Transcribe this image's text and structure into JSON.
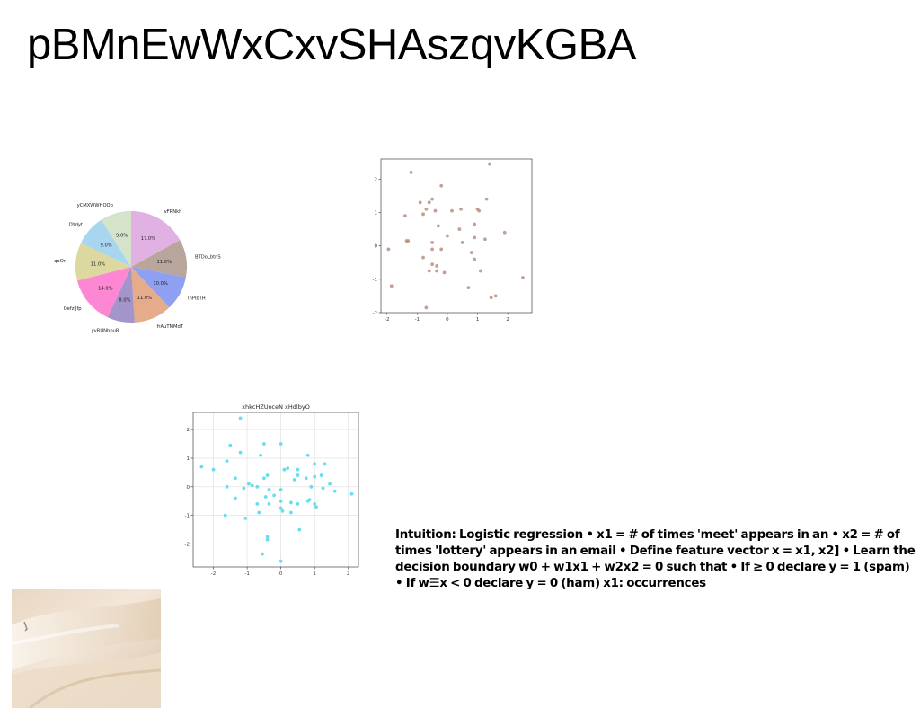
{
  "page": {
    "title": "pBMnEwWxCxvSHAszqvKGBA",
    "body_text": "Intuition: Logistic regression • x1 = # of times 'meet' appears in an • x2 = # of times 'lottery' appears in an email • Define feature vector x = x1, x2] • Learn the decision boundary w0 + w1x1 + w2x2 = 0 such that • If ≥ 0 declare y = 1 (spam) • If w☰x < 0 declare y = 0 (ham) x1: occurrences"
  },
  "chart_data": [
    {
      "type": "pie",
      "title": "",
      "slices": [
        {
          "label": "vFRNkh",
          "value": 17.0,
          "pct_label": "17.0%",
          "color": "#e2b1e3"
        },
        {
          "label": "BTDoLbtnS",
          "value": 11.0,
          "pct_label": "11.0%",
          "color": "#b8a69c"
        },
        {
          "label": "lhPlbTH",
          "value": 10.0,
          "pct_label": "10.0%",
          "color": "#8f9ff2"
        },
        {
          "label": "frAuTMMdT",
          "value": 11.0,
          "pct_label": "11.0%",
          "color": "#e5ab8a"
        },
        {
          "label": "yvRUNbpuR",
          "value": 8.0,
          "pct_label": "8.0%",
          "color": "#a395c9"
        },
        {
          "label": "OefzIJfp",
          "value": 14.0,
          "pct_label": "14.0%",
          "color": "#fd87d3"
        },
        {
          "label": "qoOrj",
          "value": 11.0,
          "pct_label": "11.0%",
          "color": "#ddd89f"
        },
        {
          "label": "DYdyt",
          "value": 9.0,
          "pct_label": "9.0%",
          "color": "#a9d6ef"
        },
        {
          "label": "yCMXWWHOOb",
          "value": 9.0,
          "pct_label": "9.0%",
          "color": "#d4e3c9"
        }
      ]
    },
    {
      "type": "scatter",
      "title": "",
      "color": "#b98f80",
      "xlim": [
        -2.2,
        2.8
      ],
      "ylim": [
        -2.0,
        2.6
      ],
      "xticks": [
        "-2",
        "-1",
        "0",
        "1",
        "2"
      ],
      "yticks": [
        "-2",
        "-1",
        "0",
        "1",
        "2"
      ],
      "grid": false,
      "points": [
        [
          -1.2,
          2.2
        ],
        [
          1.4,
          2.45
        ],
        [
          -0.2,
          1.8
        ],
        [
          -0.6,
          1.3
        ],
        [
          -0.9,
          1.3
        ],
        [
          -0.5,
          1.4
        ],
        [
          -0.7,
          1.1
        ],
        [
          -0.4,
          1.05
        ],
        [
          0.15,
          1.05
        ],
        [
          0.45,
          1.1
        ],
        [
          1.0,
          1.1
        ],
        [
          1.05,
          1.05
        ],
        [
          1.3,
          1.4
        ],
        [
          -1.4,
          0.9
        ],
        [
          -0.8,
          0.95
        ],
        [
          -0.3,
          0.6
        ],
        [
          0.4,
          0.5
        ],
        [
          0.9,
          0.65
        ],
        [
          1.9,
          0.4
        ],
        [
          -1.35,
          0.15
        ],
        [
          -1.3,
          0.15
        ],
        [
          -0.5,
          0.1
        ],
        [
          0.0,
          0.3
        ],
        [
          0.5,
          0.1
        ],
        [
          0.9,
          0.25
        ],
        [
          1.25,
          0.2
        ],
        [
          -1.95,
          -0.1
        ],
        [
          -0.5,
          -0.1
        ],
        [
          -0.2,
          -0.1
        ],
        [
          0.8,
          -0.2
        ],
        [
          -0.8,
          -0.35
        ],
        [
          -0.5,
          -0.55
        ],
        [
          -0.35,
          -0.6
        ],
        [
          0.9,
          -0.4
        ],
        [
          -0.6,
          -0.75
        ],
        [
          -0.35,
          -0.75
        ],
        [
          -0.1,
          -0.8
        ],
        [
          1.1,
          -0.75
        ],
        [
          2.5,
          -0.95
        ],
        [
          -1.85,
          -1.2
        ],
        [
          0.7,
          -1.25
        ],
        [
          1.6,
          -1.5
        ],
        [
          1.45,
          -1.55
        ],
        [
          -0.7,
          -1.85
        ]
      ]
    },
    {
      "type": "scatter",
      "title": "xhkcHZUoceN xHdlbyO",
      "color": "#4fd8ec",
      "xlim": [
        -2.6,
        2.3
      ],
      "ylim": [
        -2.8,
        2.6
      ],
      "xticks": [
        "-2",
        "-1",
        "0",
        "1",
        "2"
      ],
      "yticks": [
        "-2",
        "-1",
        "0",
        "1",
        "2"
      ],
      "grid": true,
      "points": [
        [
          -1.2,
          2.4
        ],
        [
          -1.5,
          1.45
        ],
        [
          -0.5,
          1.5
        ],
        [
          0.0,
          1.5
        ],
        [
          -1.2,
          1.2
        ],
        [
          -0.6,
          1.1
        ],
        [
          0.8,
          1.1
        ],
        [
          -2.35,
          0.7
        ],
        [
          -2.0,
          0.6
        ],
        [
          -1.6,
          0.9
        ],
        [
          0.1,
          0.6
        ],
        [
          0.2,
          0.65
        ],
        [
          0.5,
          0.6
        ],
        [
          1.0,
          0.8
        ],
        [
          1.3,
          0.8
        ],
        [
          0.5,
          0.4
        ],
        [
          1.2,
          0.4
        ],
        [
          1.0,
          0.35
        ],
        [
          1.45,
          0.1
        ],
        [
          -1.35,
          0.3
        ],
        [
          -0.5,
          0.3
        ],
        [
          -0.4,
          0.4
        ],
        [
          0.4,
          0.25
        ],
        [
          0.75,
          0.3
        ],
        [
          -1.6,
          0.0
        ],
        [
          -1.1,
          -0.05
        ],
        [
          -0.85,
          0.05
        ],
        [
          -0.95,
          0.1
        ],
        [
          -0.7,
          0.0
        ],
        [
          -0.35,
          -0.1
        ],
        [
          0.0,
          -0.1
        ],
        [
          0.9,
          0.0
        ],
        [
          1.25,
          -0.05
        ],
        [
          1.6,
          -0.15
        ],
        [
          2.1,
          -0.25
        ],
        [
          -1.35,
          -0.4
        ],
        [
          -0.45,
          -0.35
        ],
        [
          -0.2,
          -0.3
        ],
        [
          0.0,
          -0.5
        ],
        [
          0.3,
          -0.55
        ],
        [
          0.5,
          -0.6
        ],
        [
          0.85,
          -0.45
        ],
        [
          0.8,
          -0.5
        ],
        [
          1.0,
          -0.6
        ],
        [
          1.05,
          -0.7
        ],
        [
          -0.7,
          -0.6
        ],
        [
          -0.35,
          -0.6
        ],
        [
          0.0,
          -0.75
        ],
        [
          0.05,
          -0.85
        ],
        [
          0.3,
          -0.9
        ],
        [
          -1.65,
          -1.0
        ],
        [
          -1.05,
          -1.1
        ],
        [
          -0.65,
          -0.9
        ],
        [
          0.55,
          -1.5
        ],
        [
          -0.4,
          -1.75
        ],
        [
          -0.4,
          -1.85
        ],
        [
          -0.55,
          -2.35
        ],
        [
          0.0,
          -2.6
        ]
      ]
    }
  ]
}
